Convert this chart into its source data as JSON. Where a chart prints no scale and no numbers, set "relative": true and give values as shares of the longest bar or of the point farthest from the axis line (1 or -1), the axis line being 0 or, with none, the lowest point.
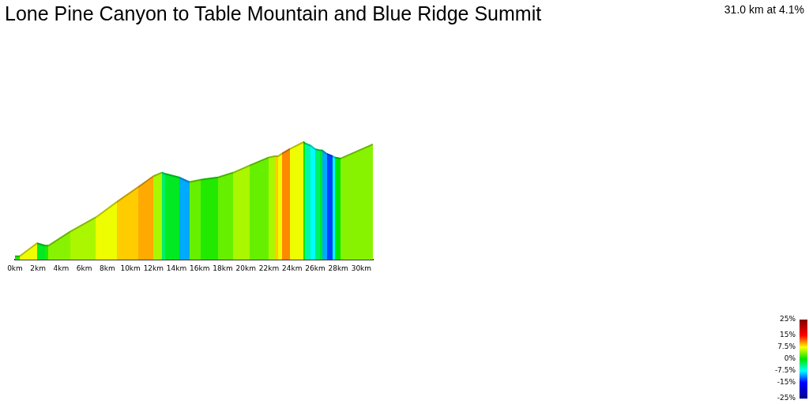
{
  "chart_data": {
    "type": "area",
    "title": "Lone Pine Canyon to Table Mountain and Blue Ridge Summit",
    "annotations": [
      "31.0 km at 4.1%"
    ],
    "relative": true,
    "x": [
      0,
      0.4,
      1.9,
      2.6,
      2.9,
      4.8,
      7,
      8.8,
      10.7,
      12,
      12.7,
      13,
      14.2,
      15.1,
      16.1,
      17.6,
      18.9,
      20.3,
      22,
      22.5,
      22.8,
      23.1,
      23.8,
      25,
      25.1,
      25.6,
      26,
      26.4,
      26.6,
      27,
      27.5,
      27.7,
      28.2,
      31
    ],
    "values": [
      0.03,
      0.03,
      0.14,
      0.12,
      0.12,
      0.24,
      0.36,
      0.49,
      0.62,
      0.71,
      0.74,
      0.73,
      0.7,
      0.66,
      0.68,
      0.7,
      0.74,
      0.8,
      0.87,
      0.88,
      0.88,
      0.9,
      0.94,
      1,
      0.99,
      0.97,
      0.94,
      0.93,
      0.93,
      0.9,
      0.88,
      0.87,
      0.86,
      0.98
    ],
    "colors": [
      null,
      "#22e900",
      "#eefd00",
      "#00e922",
      "#22e900",
      "#88f300",
      "#aaf700",
      "#eefd00",
      "#ffcc00",
      "#ffaa00",
      "#aaf700",
      "#00f066",
      "#00e922",
      "#00aaff",
      "#66f000",
      "#22e900",
      "#66f000",
      "#aaf700",
      "#66f000",
      "#aaf700",
      "#ffcc00",
      "#eefd00",
      "#ff8800",
      "#eefd00",
      "#00e600",
      "#00f7aa",
      "#00ffff",
      "#00f066",
      "#00e922",
      "#00aaff",
      "#0044ff",
      "#00ffff",
      "#00e600",
      "#88f300"
    ],
    "xlim": [
      0,
      31
    ],
    "xticks": [
      {
        "value": 0,
        "label": "0km"
      },
      {
        "value": 2,
        "label": "2km"
      },
      {
        "value": 4,
        "label": "4km"
      },
      {
        "value": 6,
        "label": "6km"
      },
      {
        "value": 8,
        "label": "8km"
      },
      {
        "value": 10,
        "label": "10km"
      },
      {
        "value": 12,
        "label": "12km"
      },
      {
        "value": 14,
        "label": "14km"
      },
      {
        "value": 16,
        "label": "16km"
      },
      {
        "value": 18,
        "label": "18km"
      },
      {
        "value": 20,
        "label": "20km"
      },
      {
        "value": 22,
        "label": "22km"
      },
      {
        "value": 24,
        "label": "24km"
      },
      {
        "value": 26,
        "label": "26km"
      },
      {
        "value": 28,
        "label": "28km"
      },
      {
        "value": 30,
        "label": "30km"
      }
    ],
    "clim": [
      -25,
      25
    ],
    "cticks": [
      {
        "value": 25,
        "label": "25%"
      },
      {
        "value": 15,
        "label": "15%"
      },
      {
        "value": 7.5,
        "label": "7.5%"
      },
      {
        "value": 0,
        "label": "0%"
      },
      {
        "value": -7.5,
        "label": "-7.5%"
      },
      {
        "value": -15,
        "label": "-15%"
      },
      {
        "value": -25,
        "label": "-25%"
      }
    ]
  }
}
